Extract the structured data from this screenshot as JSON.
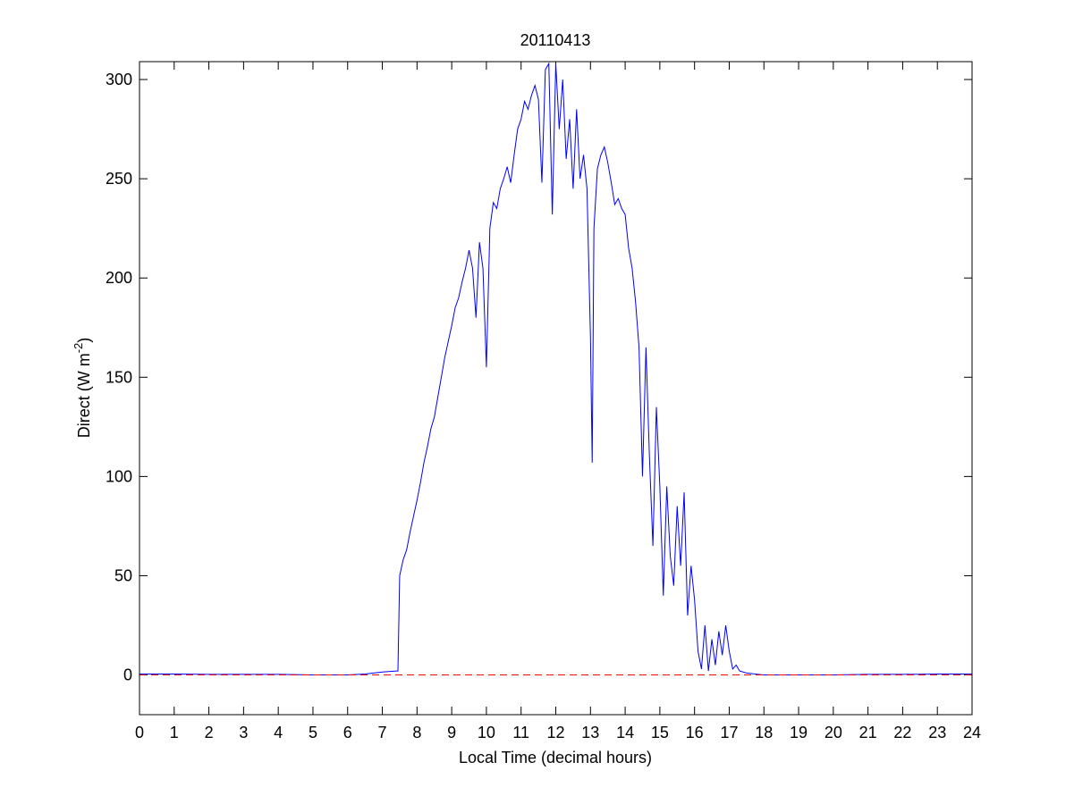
{
  "chart_data": {
    "type": "line",
    "title": "20110413",
    "xlabel": "Local Time (decimal hours)",
    "ylabel_parts": [
      "Direct (W m",
      "-2",
      ")"
    ],
    "x": [
      0,
      1,
      2,
      3,
      4,
      5,
      6,
      6.5,
      7,
      7.4,
      7.45,
      7.5,
      7.6,
      7.7,
      7.8,
      7.9,
      8.0,
      8.1,
      8.2,
      8.3,
      8.4,
      8.5,
      8.6,
      8.7,
      8.8,
      8.9,
      9.0,
      9.1,
      9.2,
      9.3,
      9.4,
      9.5,
      9.6,
      9.7,
      9.8,
      9.9,
      10.0,
      10.1,
      10.2,
      10.3,
      10.4,
      10.5,
      10.6,
      10.7,
      10.8,
      10.9,
      11.0,
      11.1,
      11.2,
      11.3,
      11.4,
      11.5,
      11.6,
      11.7,
      11.8,
      11.9,
      12.0,
      12.1,
      12.2,
      12.3,
      12.4,
      12.5,
      12.6,
      12.7,
      12.8,
      12.9,
      13.0,
      13.05,
      13.1,
      13.2,
      13.3,
      13.4,
      13.5,
      13.6,
      13.7,
      13.8,
      13.9,
      14.0,
      14.1,
      14.2,
      14.3,
      14.4,
      14.5,
      14.6,
      14.7,
      14.8,
      14.9,
      15.0,
      15.1,
      15.2,
      15.3,
      15.4,
      15.5,
      15.6,
      15.7,
      15.8,
      15.9,
      16.0,
      16.1,
      16.2,
      16.3,
      16.4,
      16.5,
      16.6,
      16.7,
      16.8,
      16.9,
      17.0,
      17.1,
      17.2,
      17.3,
      17.5,
      18,
      19,
      20,
      21,
      22,
      23,
      24
    ],
    "values": [
      0.5,
      0.5,
      0.3,
      0.3,
      0.3,
      0,
      0,
      0.5,
      1.5,
      2,
      2,
      50,
      58,
      63,
      72,
      80,
      88,
      97,
      107,
      115,
      124,
      130,
      140,
      150,
      160,
      168,
      176,
      185,
      190,
      198,
      205,
      214,
      205,
      180,
      218,
      205,
      155,
      225,
      238,
      235,
      245,
      250,
      256,
      248,
      262,
      275,
      280,
      289,
      285,
      292,
      297,
      290,
      248,
      305,
      308,
      232,
      308,
      275,
      300,
      260,
      280,
      245,
      285,
      250,
      262,
      245,
      170,
      107,
      225,
      255,
      262,
      266,
      258,
      248,
      237,
      240,
      235,
      232,
      215,
      205,
      188,
      165,
      100,
      165,
      110,
      65,
      135,
      95,
      40,
      95,
      60,
      45,
      85,
      55,
      92,
      30,
      55,
      38,
      12,
      3,
      25,
      2,
      18,
      5,
      22,
      10,
      25,
      12,
      3,
      5,
      2,
      1,
      0,
      0,
      0,
      0.3,
      0.3,
      0.5,
      0.5
    ],
    "color": "#0000ff",
    "reference_line": {
      "value": 0,
      "color": "#ff0000"
    },
    "xlim": [
      0,
      24
    ],
    "xticks": [
      0,
      1,
      2,
      3,
      4,
      5,
      6,
      7,
      8,
      9,
      10,
      11,
      12,
      13,
      14,
      15,
      16,
      17,
      18,
      19,
      20,
      21,
      22,
      23,
      24
    ],
    "ylim": [
      -20,
      309
    ],
    "yticks": [
      0,
      50,
      100,
      150,
      200,
      250,
      300
    ]
  }
}
